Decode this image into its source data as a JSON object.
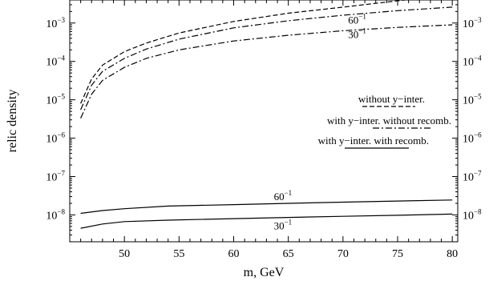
{
  "chart_data": {
    "type": "line",
    "title": "",
    "xlabel": "m, GeV",
    "ylabel": "relic density",
    "xlim": [
      45,
      80.5
    ],
    "ylim_log10": [
      -8.7,
      -2.4
    ],
    "y_scale": "log",
    "x_ticks": [
      50,
      55,
      60,
      65,
      70,
      75,
      80
    ],
    "y_ticks": [
      {
        "exp": -3,
        "label": "10",
        "sup": "−3"
      },
      {
        "exp": -4,
        "label": "10",
        "sup": "−4"
      },
      {
        "exp": -5,
        "label": "10",
        "sup": "−5"
      },
      {
        "exp": -6,
        "label": "10",
        "sup": "−6"
      },
      {
        "exp": -7,
        "label": "10",
        "sup": "−7"
      },
      {
        "exp": -8,
        "label": "10",
        "sup": "−8"
      }
    ],
    "series": [
      {
        "key": "without_y_inter",
        "style": "dashed",
        "x": [
          46,
          47,
          48,
          50,
          52,
          55,
          60,
          65,
          70,
          75,
          80
        ],
        "y": [
          8e-06,
          3.5e-05,
          8e-05,
          0.00018,
          0.0003,
          0.00055,
          0.0011,
          0.0018,
          0.0026,
          0.0038,
          0.0055
        ]
      },
      {
        "key": "with_y_inter_without_recomb_60",
        "style": "dashdot",
        "curve_label": {
          "base": "60",
          "sup": "−1"
        },
        "x": [
          46,
          47,
          48,
          50,
          52,
          55,
          60,
          65,
          70,
          75,
          80
        ],
        "y": [
          5.5e-06,
          2.4e-05,
          5.5e-05,
          0.00012,
          0.00021,
          0.00038,
          0.00075,
          0.00115,
          0.0016,
          0.0021,
          0.0026
        ]
      },
      {
        "key": "with_y_inter_without_recomb_30",
        "style": "dashdot",
        "curve_label": {
          "base": "30",
          "sup": "−1"
        },
        "x": [
          46,
          47,
          48,
          50,
          52,
          55,
          60,
          65,
          70,
          75,
          80
        ],
        "y": [
          3.3e-06,
          1.4e-05,
          3.2e-05,
          7e-05,
          0.00012,
          0.0002,
          0.00034,
          0.00048,
          0.00063,
          0.00077,
          0.0009
        ]
      },
      {
        "key": "with_y_inter_with_recomb_60",
        "style": "solid",
        "curve_label": {
          "base": "60",
          "sup": "−1"
        },
        "x": [
          46,
          48,
          50,
          54,
          60,
          65,
          70,
          75,
          80
        ],
        "y": [
          1.1e-08,
          1.3e-08,
          1.45e-08,
          1.7e-08,
          1.85e-08,
          2e-08,
          2.15e-08,
          2.3e-08,
          2.45e-08
        ]
      },
      {
        "key": "with_y_inter_with_recomb_30",
        "style": "solid",
        "curve_label": {
          "base": "30",
          "sup": "−1"
        },
        "x": [
          46,
          48,
          50,
          54,
          60,
          65,
          70,
          75,
          80
        ],
        "y": [
          4.5e-09,
          5.8e-09,
          6.7e-09,
          7.3e-09,
          8e-09,
          8.6e-09,
          9.2e-09,
          9.8e-09,
          1.05e-08
        ]
      }
    ],
    "legend": {
      "placement": "center-right",
      "entries": [
        {
          "label": "without y−inter.",
          "style": "dashed"
        },
        {
          "label": "with y−inter. without recomb.",
          "style": "dashdot"
        },
        {
          "label": "with y−inter. with recomb.",
          "style": "solid"
        }
      ]
    }
  }
}
